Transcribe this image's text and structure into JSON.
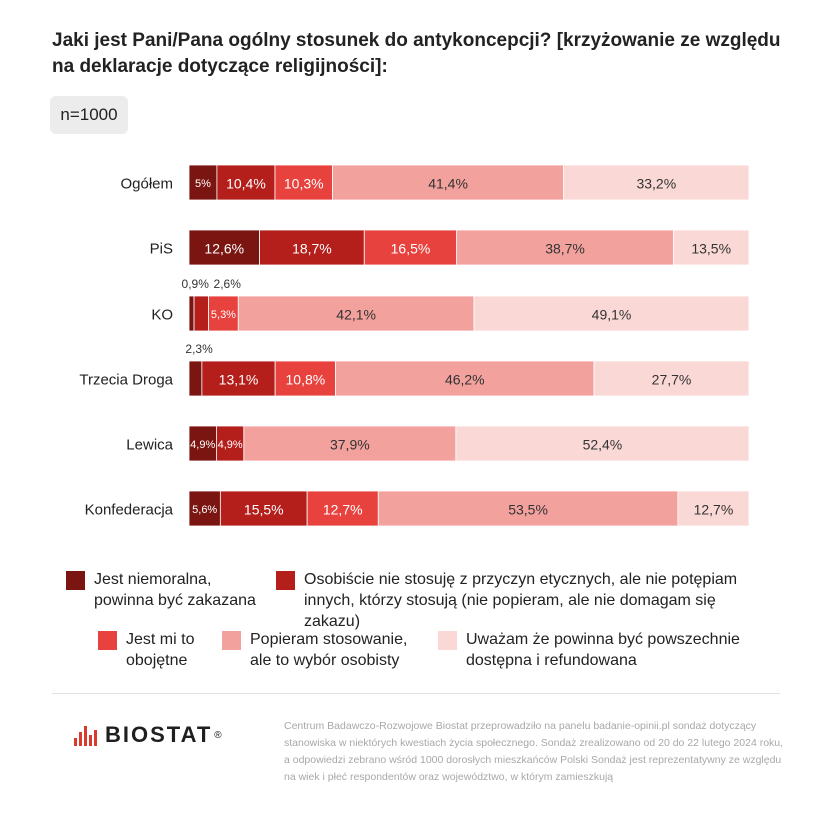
{
  "title": "Jaki jest Pani/Pana ogólny stosunek do antykoncepcji? [krzyżowanie ze względu na deklaracje dotyczące religijności]:",
  "sample": "n=1000",
  "colors": [
    "#7b1512",
    "#b51f1b",
    "#e8423e",
    "#f3a19d",
    "#fad8d6"
  ],
  "legend": [
    "Jest niemoralna, powinna być zakazana",
    "Osobiście nie stosuję z przyczyn etycznych, ale nie potępiam innych, którzy stosują (nie popieram, ale nie domagam się zakazu)",
    "Jest mi to obojętne",
    "Popieram stosowanie, ale to wybór osobisty",
    "Uważam że powinna być powszechnie dostępna i refundowana"
  ],
  "chart_data": {
    "type": "bar",
    "orientation": "horizontal",
    "stacked": true,
    "categories": [
      "Ogółem",
      "PiS",
      "KO",
      "Trzecia Droga",
      "Lewica",
      "Konfederacja"
    ],
    "series": [
      {
        "name": "Jest niemoralna, powinna być zakazana",
        "values": [
          5,
          12.6,
          0.9,
          2.3,
          4.9,
          5.6
        ],
        "labels": [
          "5%",
          "12,6%",
          "0,9%",
          "2,3%",
          "4,9%",
          "5,6%"
        ]
      },
      {
        "name": "Osobiście nie stosuję z przyczyn etycznych, ale nie potępiam innych, którzy stosują (nie popieram, ale nie domagam się zakazu)",
        "values": [
          10.4,
          18.7,
          2.6,
          13.1,
          4.9,
          15.5
        ],
        "labels": [
          "10,4%",
          "18,7%",
          "2,6%",
          "13,1%",
          "4,9%",
          "15,5%"
        ]
      },
      {
        "name": "Jest mi to obojętne",
        "values": [
          10.3,
          16.5,
          5.3,
          10.8,
          0,
          12.7
        ],
        "labels": [
          "10,3%",
          "16,5%",
          "5,3%",
          "10,8%",
          "",
          "12,7%"
        ]
      },
      {
        "name": "Popieram stosowanie, ale to wybór osobisty",
        "values": [
          41.4,
          38.7,
          42.1,
          46.2,
          37.9,
          53.5
        ],
        "labels": [
          "41,4%",
          "38,7%",
          "42,1%",
          "46,2%",
          "37,9%",
          "53,5%"
        ]
      },
      {
        "name": "Uważam że powinna być powszechnie dostępna i refundowana",
        "values": [
          33.2,
          13.5,
          49.1,
          27.7,
          52.4,
          12.7
        ],
        "labels": [
          "33,2%",
          "13,5%",
          "49,1%",
          "27,7%",
          "52,4%",
          "12,7%"
        ]
      }
    ]
  },
  "brand": {
    "name": "BIOSTAT",
    "reg": "®"
  },
  "footer": "Centrum Badawczo-Rozwojowe Biostat przeprowadziło na panelu badanie-opinii.pl sondaż dotyczący stanowiska w niektórych kwestiach życia społecznego. Sondaż zrealizowano od 20 do 22 lutego 2024 roku, a odpowiedzi zebrano wśród 1000 dorosłych mieszkańców Polski Sondaż jest reprezentatywny ze względu na wiek i płeć respondentów oraz województwo, w którym zamieszkują"
}
